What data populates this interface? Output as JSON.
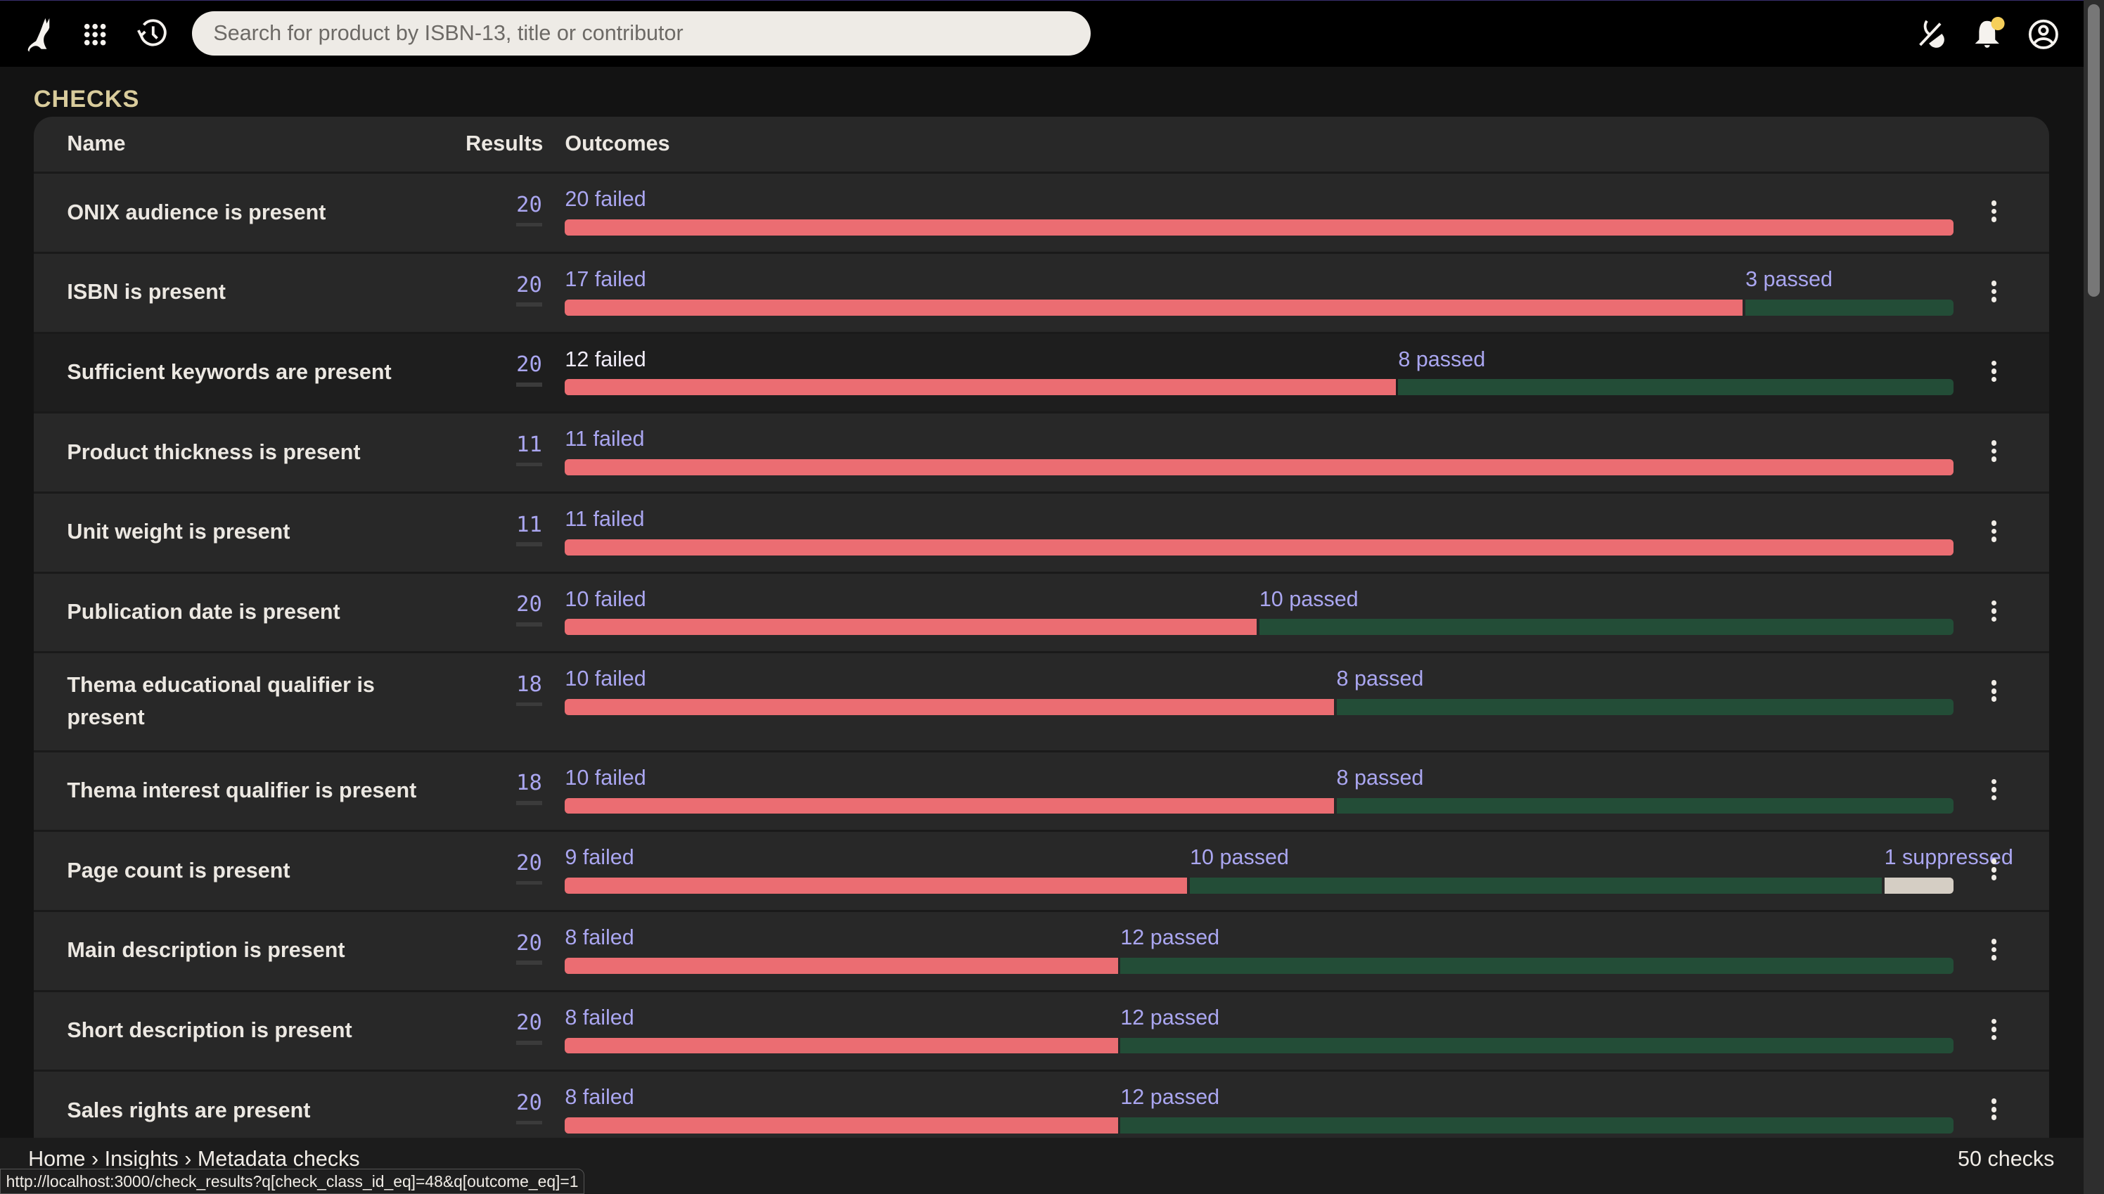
{
  "topbar": {
    "search_placeholder": "Search for product by ISBN-13, title or contributor",
    "icons": [
      "cat-logo-icon",
      "apps-grid-icon",
      "history-icon",
      "theme-toggle-icon",
      "bell-icon",
      "account-icon"
    ],
    "notification_dot_color": "#f5cf5a"
  },
  "page": {
    "title": "CHECKS"
  },
  "table": {
    "headers": {
      "name": "Name",
      "results": "Results",
      "outcomes": "Outcomes"
    },
    "colors": {
      "failed": "#eb6d72",
      "passed": "#234d37",
      "suppressed": "#d5cec4"
    },
    "rows": [
      {
        "name": "ONIX audience is present",
        "results": "20",
        "outcomes": [
          {
            "type": "failed",
            "count": 20,
            "label": "20 failed"
          }
        ]
      },
      {
        "name": "ISBN is present",
        "results": "20",
        "outcomes": [
          {
            "type": "failed",
            "count": 17,
            "label": "17 failed"
          },
          {
            "type": "passed",
            "count": 3,
            "label": "3 passed"
          }
        ]
      },
      {
        "name": "Sufficient keywords are present",
        "results": "20",
        "hover": true,
        "outcomes": [
          {
            "type": "failed",
            "count": 12,
            "label": "12 failed"
          },
          {
            "type": "passed",
            "count": 8,
            "label": "8 passed"
          }
        ]
      },
      {
        "name": "Product thickness is present",
        "results": "11",
        "outcomes": [
          {
            "type": "failed",
            "count": 11,
            "label": "11 failed"
          }
        ]
      },
      {
        "name": "Unit weight is present",
        "results": "11",
        "outcomes": [
          {
            "type": "failed",
            "count": 11,
            "label": "11 failed"
          }
        ]
      },
      {
        "name": "Publication date is present",
        "results": "20",
        "outcomes": [
          {
            "type": "failed",
            "count": 10,
            "label": "10 failed"
          },
          {
            "type": "passed",
            "count": 10,
            "label": "10 passed"
          }
        ]
      },
      {
        "name": "Thema educational qualifier is present",
        "results": "18",
        "tall": true,
        "outcomes": [
          {
            "type": "failed",
            "count": 10,
            "label": "10 failed"
          },
          {
            "type": "passed",
            "count": 8,
            "label": "8 passed"
          }
        ]
      },
      {
        "name": "Thema interest qualifier is present",
        "results": "18",
        "outcomes": [
          {
            "type": "failed",
            "count": 10,
            "label": "10 failed"
          },
          {
            "type": "passed",
            "count": 8,
            "label": "8 passed"
          }
        ]
      },
      {
        "name": "Page count is present",
        "results": "20",
        "outcomes": [
          {
            "type": "failed",
            "count": 9,
            "label": "9 failed"
          },
          {
            "type": "passed",
            "count": 10,
            "label": "10 passed"
          },
          {
            "type": "suppressed",
            "count": 1,
            "label": "1 suppressed"
          }
        ]
      },
      {
        "name": "Main description is present",
        "results": "20",
        "outcomes": [
          {
            "type": "failed",
            "count": 8,
            "label": "8 failed"
          },
          {
            "type": "passed",
            "count": 12,
            "label": "12 passed"
          }
        ]
      },
      {
        "name": "Short description is present",
        "results": "20",
        "outcomes": [
          {
            "type": "failed",
            "count": 8,
            "label": "8 failed"
          },
          {
            "type": "passed",
            "count": 12,
            "label": "12 passed"
          }
        ]
      },
      {
        "name": "Sales rights are present",
        "results": "20",
        "outcomes": [
          {
            "type": "failed",
            "count": 8,
            "label": "8 failed"
          },
          {
            "type": "passed",
            "count": 12,
            "label": "12 passed"
          }
        ]
      }
    ]
  },
  "footer": {
    "breadcrumb": [
      "Home",
      "Insights",
      "Metadata checks"
    ],
    "separator": "›",
    "total": "50 checks"
  },
  "status_url": "http://localhost:3000/check_results?q[check_class_id_eq]=48&q[outcome_eq]=1"
}
